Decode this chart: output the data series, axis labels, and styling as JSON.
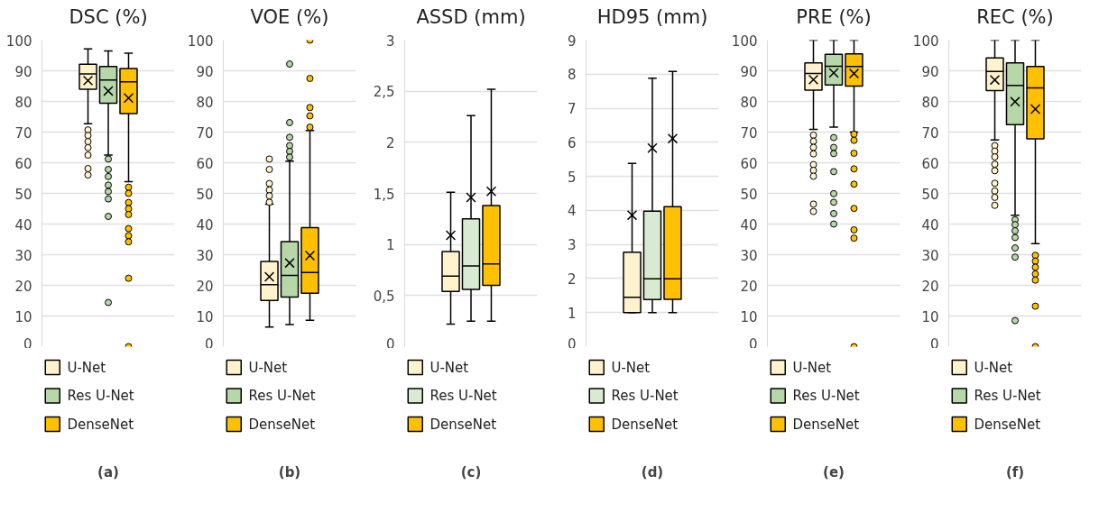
{
  "chart_data": [
    {
      "type": "box",
      "title": "DSC (%)",
      "categories": [
        null
      ],
      "ylim": [
        0,
        100
      ],
      "yticks": [
        0,
        10,
        20,
        30,
        40,
        50,
        60,
        70,
        80,
        90,
        100
      ],
      "grid": "y",
      "legend": "bottom",
      "tick_labels": "y",
      "marker": "circle",
      "annotations": [
        "(a)"
      ],
      "series": [
        {
          "name": "U-Net",
          "color": "#fff2cc",
          "boxes": [
            {
              "low": 72.7,
              "q1": 84.0,
              "median": 89.0,
              "q3": 92.1,
              "high": 97.1,
              "mean": 86.8,
              "outliers": [
                70.7,
                68.9,
                66.9,
                64.9,
                62.5,
                58.1,
                56.0
              ]
            }
          ]
        },
        {
          "name": "Res U-Net",
          "color": "#b6d7a8",
          "boxes": [
            {
              "low": 62.5,
              "q1": 79.4,
              "median": 87.0,
              "q3": 91.4,
              "high": 96.5,
              "mean": 83.4,
              "outliers": [
                61.2,
                57.8,
                55.5,
                52.7,
                50.6,
                48.2,
                42.5,
                14.4
              ]
            }
          ]
        },
        {
          "name": "DenseNet",
          "color": "#ffc000",
          "boxes": [
            {
              "low": 53.8,
              "q1": 76.0,
              "median": 86.4,
              "q3": 90.7,
              "high": 95.7,
              "mean": 81.1,
              "outliers": [
                52.0,
                50.0,
                47.0,
                45.0,
                43.1,
                38.5,
                36.2,
                34.2,
                22.3,
                0
              ]
            }
          ]
        }
      ]
    },
    {
      "type": "box",
      "title": "VOE (%)",
      "categories": [
        null
      ],
      "ylim": [
        0,
        100
      ],
      "yticks": [
        0,
        10,
        20,
        30,
        40,
        50,
        60,
        70,
        80,
        90,
        100
      ],
      "grid": "y",
      "legend": "bottom",
      "tick_labels": "y",
      "marker": "circle",
      "annotations": [
        "(b)"
      ],
      "series": [
        {
          "name": "U-Net",
          "color": "#fff2cc",
          "boxes": [
            {
              "low": 6.4,
              "q1": 15.1,
              "median": 20.2,
              "q3": 27.8,
              "high": 46.5,
              "mean": 22.8,
              "outliers": [
                61.2,
                57.8,
                53.2,
                51.1,
                49.2,
                47.1
              ]
            }
          ]
        },
        {
          "name": "Res U-Net",
          "color": "#b6d7a8",
          "boxes": [
            {
              "low": 7.2,
              "q1": 16.2,
              "median": 23.2,
              "q3": 34.3,
              "high": 60.5,
              "mean": 27.3,
              "outliers": [
                92.2,
                73.1,
                68.3,
                65.6,
                63.7,
                61.8
              ]
            }
          ]
        },
        {
          "name": "DenseNet",
          "color": "#ffc000",
          "boxes": [
            {
              "low": 8.6,
              "q1": 17.4,
              "median": 24.2,
              "q3": 38.8,
              "high": 70.5,
              "mean": 29.7,
              "outliers": [
                100,
                87.5,
                78.0,
                75.3,
                71.6
              ]
            }
          ]
        }
      ]
    },
    {
      "type": "box",
      "title": "ASSD (mm)",
      "categories": [
        null
      ],
      "ylim": [
        0,
        3
      ],
      "yticks": [
        0,
        {
          "value": 0.5,
          "label": "0,5"
        },
        1,
        {
          "value": 1.5,
          "label": "1,5"
        },
        2,
        {
          "value": 2.5,
          "label": "2,5"
        },
        3
      ],
      "grid": "y",
      "legend": "bottom",
      "tick_labels": "y",
      "annotations": [
        "(c)"
      ],
      "series": [
        {
          "name": "U-Net",
          "color": "#fff2cc",
          "boxes": [
            {
              "low": 0.22,
              "q1": 0.54,
              "median": 0.69,
              "q3": 0.93,
              "high": 1.51,
              "mean": 1.09
            }
          ]
        },
        {
          "name": "Res U-Net",
          "color": "#d9ead3",
          "boxes": [
            {
              "low": 0.25,
              "q1": 0.56,
              "median": 0.79,
              "q3": 1.25,
              "high": 2.26,
              "mean": 1.46
            }
          ]
        },
        {
          "name": "DenseNet",
          "color": "#ffc000",
          "boxes": [
            {
              "low": 0.25,
              "q1": 0.6,
              "median": 0.81,
              "q3": 1.38,
              "high": 2.52,
              "mean": 1.52
            }
          ]
        }
      ]
    },
    {
      "type": "box",
      "title": "HD95 (mm)",
      "categories": [
        null
      ],
      "ylim": [
        0,
        9
      ],
      "yticks": [
        0,
        1,
        2,
        3,
        4,
        5,
        6,
        7,
        8,
        9
      ],
      "grid": "y",
      "legend": "bottom",
      "tick_labels": "y",
      "annotations": [
        "(d)"
      ],
      "series": [
        {
          "name": "U-Net",
          "color": "#fff2cc",
          "boxes": [
            {
              "low": 1.0,
              "q1": 1.0,
              "median": 1.45,
              "q3": 2.77,
              "high": 5.38,
              "mean": 3.86
            }
          ]
        },
        {
          "name": "Res U-Net",
          "color": "#d9ead3",
          "boxes": [
            {
              "low": 1.0,
              "q1": 1.38,
              "median": 1.99,
              "q3": 3.98,
              "high": 7.88,
              "mean": 5.83
            }
          ]
        },
        {
          "name": "DenseNet",
          "color": "#ffc000",
          "boxes": [
            {
              "low": 1.0,
              "q1": 1.39,
              "median": 1.99,
              "q3": 4.11,
              "high": 8.08,
              "mean": 6.11
            }
          ]
        }
      ]
    },
    {
      "type": "box",
      "title": "PRE (%)",
      "categories": [
        null
      ],
      "ylim": [
        0,
        100
      ],
      "yticks": [
        0,
        10,
        20,
        30,
        40,
        50,
        60,
        70,
        80,
        90,
        100
      ],
      "grid": "y",
      "legend": "bottom",
      "tick_labels": "y",
      "marker": "circle",
      "annotations": [
        "(e)"
      ],
      "series": [
        {
          "name": "U-Net",
          "color": "#fff2cc",
          "boxes": [
            {
              "low": 70.9,
              "q1": 83.7,
              "median": 89.1,
              "q3": 92.6,
              "high": 100,
              "mean": 87.1,
              "outliers": [
                69.0,
                67.0,
                65.0,
                62.9,
                59.4,
                57.5,
                55.6,
                46.5,
                44.1
              ]
            }
          ]
        },
        {
          "name": "Res U-Net",
          "color": "#b6d7a8",
          "boxes": [
            {
              "low": 71.6,
              "q1": 85.4,
              "median": 91.5,
              "q3": 95.4,
              "high": 100,
              "mean": 89.3,
              "outliers": [
                68.2,
                65.0,
                63.0,
                57.1,
                49.9,
                47.1,
                43.4,
                40.0
              ]
            }
          ]
        },
        {
          "name": "DenseNet",
          "color": "#ffc000",
          "boxes": [
            {
              "low": 70.0,
              "q1": 85.0,
              "median": 91.4,
              "q3": 95.5,
              "high": 100,
              "mean": 89.1,
              "outliers": [
                69.3,
                67.3,
                63.1,
                58.0,
                53.0,
                45.1,
                38.1,
                35.4,
                0
              ]
            }
          ]
        }
      ]
    },
    {
      "type": "box",
      "title": "REC (%)",
      "categories": [
        null
      ],
      "ylim": [
        0,
        100
      ],
      "yticks": [
        0,
        10,
        20,
        30,
        40,
        50,
        60,
        70,
        80,
        90,
        100
      ],
      "grid": "y",
      "legend": "bottom",
      "tick_labels": "y",
      "marker": "circle",
      "annotations": [
        "(f)"
      ],
      "series": [
        {
          "name": "U-Net",
          "color": "#fff2cc",
          "boxes": [
            {
              "low": 67.4,
              "q1": 83.5,
              "median": 89.8,
              "q3": 94.2,
              "high": 100,
              "mean": 87.0,
              "outliers": [
                65.6,
                63.8,
                61.9,
                59.5,
                57.4,
                53.3,
                50.8,
                48.7,
                46.1
              ]
            }
          ]
        },
        {
          "name": "Res U-Net",
          "color": "#b6d7a8",
          "boxes": [
            {
              "low": 42.9,
              "q1": 72.4,
              "median": 85.2,
              "q3": 92.6,
              "high": 100,
              "mean": 79.9,
              "outliers": [
                41.4,
                39.8,
                37.8,
                35.6,
                32.2,
                29.2,
                8.5
              ]
            }
          ]
        },
        {
          "name": "DenseNet",
          "color": "#ffc000",
          "boxes": [
            {
              "low": 33.6,
              "q1": 67.8,
              "median": 84.4,
              "q3": 91.4,
              "high": 100,
              "mean": 77.5,
              "outliers": [
                29.8,
                27.9,
                25.9,
                23.7,
                21.7,
                13.2,
                0
              ]
            }
          ]
        }
      ]
    }
  ]
}
